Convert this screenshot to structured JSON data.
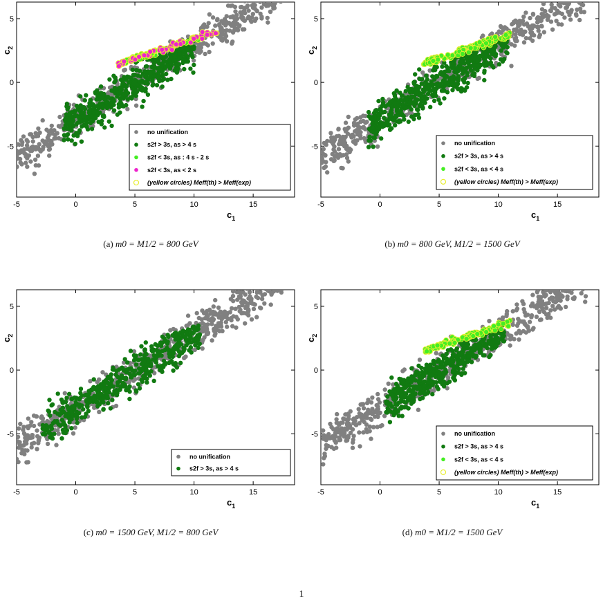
{
  "page_number": "1",
  "colors": {
    "no_unification": "#808080",
    "dark_green": "#117a11",
    "light_green": "#44ee22",
    "magenta": "#ee22cc",
    "yellow": "#e8ee33"
  },
  "chart_data": [
    {
      "type": "scatter",
      "id": "a",
      "caption_prefix": "(a)",
      "caption": "m0 = M1/2 = 800 GeV",
      "xlabel": "c1",
      "ylabel": "c2",
      "xlim": [
        -5,
        18.5
      ],
      "ylim": [
        -9,
        6.3
      ],
      "xticks": [
        -5,
        0,
        5,
        10,
        15
      ],
      "yticks": [
        5,
        0,
        -5
      ],
      "legend": [
        {
          "marker": "gray",
          "text": "no unification"
        },
        {
          "marker": "green",
          "text": "s2f > 3s,   as > 4 s"
        },
        {
          "marker": "light_green",
          "text": "s2f < 3s,   as : 4 s - 2 s"
        },
        {
          "marker": "magenta",
          "text": "s2f < 3s,   as < 2 s"
        },
        {
          "marker": "yellow_ring",
          "text": "(yellow circles)   Meff(th) > Meff(exp)"
        }
      ],
      "series": [
        {
          "name": "no unification",
          "x_range": [
            -5,
            17.5
          ],
          "fit": "0.58x - 2.95",
          "spread": 1.0,
          "n": 600
        },
        {
          "name": "s2f > 3s,   as > 4 s",
          "x_range": [
            -1.0,
            10.0
          ],
          "fit": "0.58x - 2.95",
          "spread": 1.1,
          "n": 520
        },
        {
          "name": "s2f < 3s,   as : 4 s - 2 s",
          "x_range": [
            3.7,
            10.5
          ],
          "fit": "0.31x + 0.32",
          "spread": 0.15,
          "n": 70
        },
        {
          "name": "s2f < 3s,   as < 2 s",
          "x_range": [
            3.6,
            12.3
          ],
          "fit": "0.31x + 0.32",
          "spread": 0.18,
          "n": 60
        }
      ]
    },
    {
      "type": "scatter",
      "id": "b",
      "caption_prefix": "(b)",
      "caption": "m0 = 800 GeV, M1/2 = 1500 GeV",
      "xlabel": "c1",
      "ylabel": "c2",
      "xlim": [
        -5,
        18.5
      ],
      "ylim": [
        -9,
        6.3
      ],
      "xticks": [
        -5,
        0,
        5,
        10,
        15
      ],
      "yticks": [
        5,
        0,
        -5
      ],
      "legend": [
        {
          "marker": "gray",
          "text": "no unification"
        },
        {
          "marker": "green",
          "text": "s2f > 3s,   as > 4 s"
        },
        {
          "marker": "light_green",
          "text": "s2f < 3s,   as < 4 s"
        },
        {
          "marker": "yellow_ring",
          "text": "(yellow circles)   Meff(th) > Meff(exp)"
        }
      ],
      "series": [
        {
          "name": "no unification",
          "x_range": [
            -5,
            17.5
          ],
          "fit": "0.58x - 2.95",
          "spread": 1.0,
          "n": 600
        },
        {
          "name": "s2f > 3s,   as > 4 s",
          "x_range": [
            -1.0,
            10.8
          ],
          "fit": "0.58x - 2.95",
          "spread": 1.1,
          "n": 560
        },
        {
          "name": "s2f < 3s,   as < 4 s",
          "x_range": [
            3.7,
            11.0
          ],
          "fit": "0.31x + 0.32",
          "spread": 0.18,
          "n": 110
        }
      ]
    },
    {
      "type": "scatter",
      "id": "c",
      "caption_prefix": "(c)",
      "caption": "m0 = 1500 GeV, M1/2 = 800 GeV",
      "xlabel": "c1",
      "ylabel": "c2",
      "xlim": [
        -5,
        18.5
      ],
      "ylim": [
        -9,
        6.3
      ],
      "xticks": [
        -5,
        0,
        5,
        10,
        15
      ],
      "yticks": [
        5,
        0,
        -5
      ],
      "legend": [
        {
          "marker": "gray",
          "text": "no unification"
        },
        {
          "marker": "green",
          "text": "s2f > 3s,   as > 4 s"
        }
      ],
      "series": [
        {
          "name": "no unification",
          "x_range": [
            -5,
            17.5
          ],
          "fit": "0.58x - 2.95",
          "spread": 1.0,
          "n": 650
        },
        {
          "name": "s2f > 3s,   as > 4 s",
          "x_range": [
            -2.8,
            10.5
          ],
          "fit": "0.58x - 2.95",
          "spread": 1.1,
          "n": 480
        }
      ]
    },
    {
      "type": "scatter",
      "id": "d",
      "caption_prefix": "(d)",
      "caption": "m0 = M1/2 = 1500 GeV",
      "xlabel": "c1",
      "ylabel": "c2",
      "xlim": [
        -5,
        18.5
      ],
      "ylim": [
        -9,
        6.3
      ],
      "xticks": [
        -5,
        0,
        5,
        10,
        15
      ],
      "yticks": [
        5,
        0,
        -5
      ],
      "legend": [
        {
          "marker": "gray",
          "text": "no unification"
        },
        {
          "marker": "green",
          "text": "s2f > 3s,   as > 4 s"
        },
        {
          "marker": "light_green",
          "text": "s2f < 3s,   as < 4 s"
        },
        {
          "marker": "yellow_ring",
          "text": "(yellow circles)   Meff(th) > Meff(exp)"
        }
      ],
      "series": [
        {
          "name": "no unification",
          "x_range": [
            -5,
            17.5
          ],
          "fit": "0.58x - 2.95",
          "spread": 1.0,
          "n": 620
        },
        {
          "name": "s2f > 3s,   as > 4 s",
          "x_range": [
            0.5,
            10.5
          ],
          "fit": "0.58x - 2.95",
          "spread": 1.0,
          "n": 520
        },
        {
          "name": "s2f < 3s,   as < 4 s",
          "x_range": [
            3.7,
            11.0
          ],
          "fit": "0.31x + 0.32",
          "spread": 0.18,
          "n": 110
        }
      ]
    }
  ]
}
